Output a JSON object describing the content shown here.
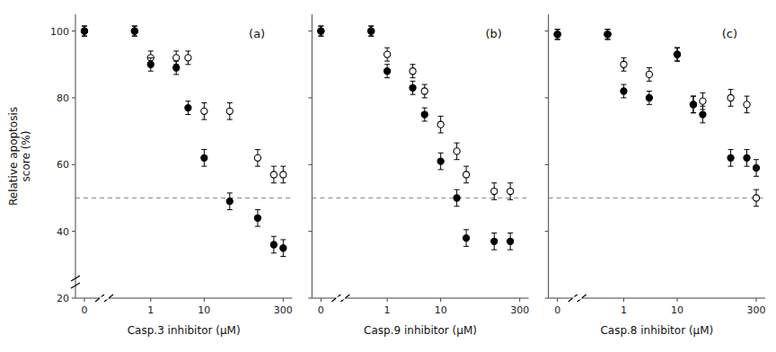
{
  "chart_data": [
    {
      "type": "scatter",
      "annotation": "(a)",
      "x_label": "Casp.3 inhibitor (μM)",
      "y_label": "Relative apoptosis\nscore (%)",
      "log": "x",
      "grid": false,
      "xlim": [
        0,
        300
      ],
      "xticks": [
        0,
        1,
        10,
        300
      ],
      "ylim": [
        20,
        105
      ],
      "yticks": [
        20,
        40,
        60,
        80,
        100
      ],
      "reference_line": {
        "y": 50
      },
      "series": [
        {
          "marker": "open-circle",
          "color": "#000000",
          "x": [
            0,
            0.5,
            1,
            3,
            5,
            10,
            30,
            100,
            200,
            300
          ],
          "values": [
            100,
            100,
            92,
            92,
            92,
            76,
            76,
            62,
            57,
            57
          ],
          "errors": [
            1.5,
            1.5,
            2,
            2,
            2,
            2.5,
            2.5,
            2.5,
            2.5,
            2.5
          ]
        },
        {
          "marker": "filled-circle",
          "color": "#000000",
          "x": [
            0,
            0.5,
            1,
            3,
            5,
            10,
            30,
            100,
            200,
            300
          ],
          "values": [
            100,
            100,
            90,
            89,
            77,
            62,
            49,
            44,
            36,
            35
          ],
          "errors": [
            1.5,
            1.5,
            2,
            2,
            2,
            2.5,
            2.5,
            2.5,
            2.5,
            2.5
          ]
        }
      ]
    },
    {
      "type": "scatter",
      "annotation": "(b)",
      "x_label": "Casp.9 inhibitor (μM)",
      "log": "x",
      "grid": false,
      "tick_labels": "x",
      "xlim": [
        0,
        300
      ],
      "xticks": [
        0,
        1,
        10,
        300
      ],
      "ylim": [
        20,
        105
      ],
      "yticks": [
        20,
        40,
        60,
        80,
        100
      ],
      "reference_line": {
        "y": 50
      },
      "series": [
        {
          "marker": "open-circle",
          "color": "#000000",
          "x": [
            0,
            0.5,
            1,
            3,
            5,
            10,
            20,
            30,
            100,
            200
          ],
          "values": [
            100,
            100,
            93,
            88,
            82,
            72,
            64,
            57,
            52,
            52
          ],
          "errors": [
            1.5,
            1.5,
            2,
            2,
            2,
            2.5,
            2.5,
            2.5,
            2.5,
            2.5
          ]
        },
        {
          "marker": "filled-circle",
          "color": "#000000",
          "x": [
            0,
            0.5,
            1,
            3,
            5,
            10,
            20,
            30,
            100,
            200
          ],
          "values": [
            100,
            100,
            88,
            83,
            75,
            61,
            50,
            38,
            37,
            37
          ],
          "errors": [
            1.5,
            1.5,
            2,
            2,
            2,
            2.5,
            2.5,
            2.5,
            2.5,
            2.5
          ]
        }
      ]
    },
    {
      "type": "scatter",
      "annotation": "(c)",
      "x_label": "Casp.8 inhibitor (μM)",
      "log": "x",
      "grid": false,
      "tick_labels": "x",
      "xlim": [
        0,
        300
      ],
      "xticks": [
        0,
        1,
        10,
        300
      ],
      "ylim": [
        20,
        105
      ],
      "yticks": [
        20,
        40,
        60,
        80,
        100
      ],
      "reference_line": {
        "y": 50
      },
      "series": [
        {
          "marker": "open-circle",
          "color": "#000000",
          "x": [
            0,
            0.5,
            1,
            3,
            10,
            20,
            30,
            100,
            200,
            300
          ],
          "values": [
            99,
            99,
            90,
            87,
            93,
            78,
            79,
            80,
            78,
            50
          ],
          "errors": [
            1.5,
            1.5,
            2,
            2,
            2,
            2.5,
            2.5,
            2.5,
            2.5,
            2.5
          ]
        },
        {
          "marker": "filled-circle",
          "color": "#000000",
          "x": [
            0,
            0.5,
            1,
            3,
            10,
            20,
            30,
            100,
            200,
            300
          ],
          "values": [
            99,
            99,
            82,
            80,
            93,
            78,
            75,
            62,
            62,
            59
          ],
          "errors": [
            1.5,
            1.5,
            2,
            2,
            2,
            2.5,
            2.5,
            2.5,
            2.5,
            2.5
          ]
        }
      ]
    }
  ]
}
